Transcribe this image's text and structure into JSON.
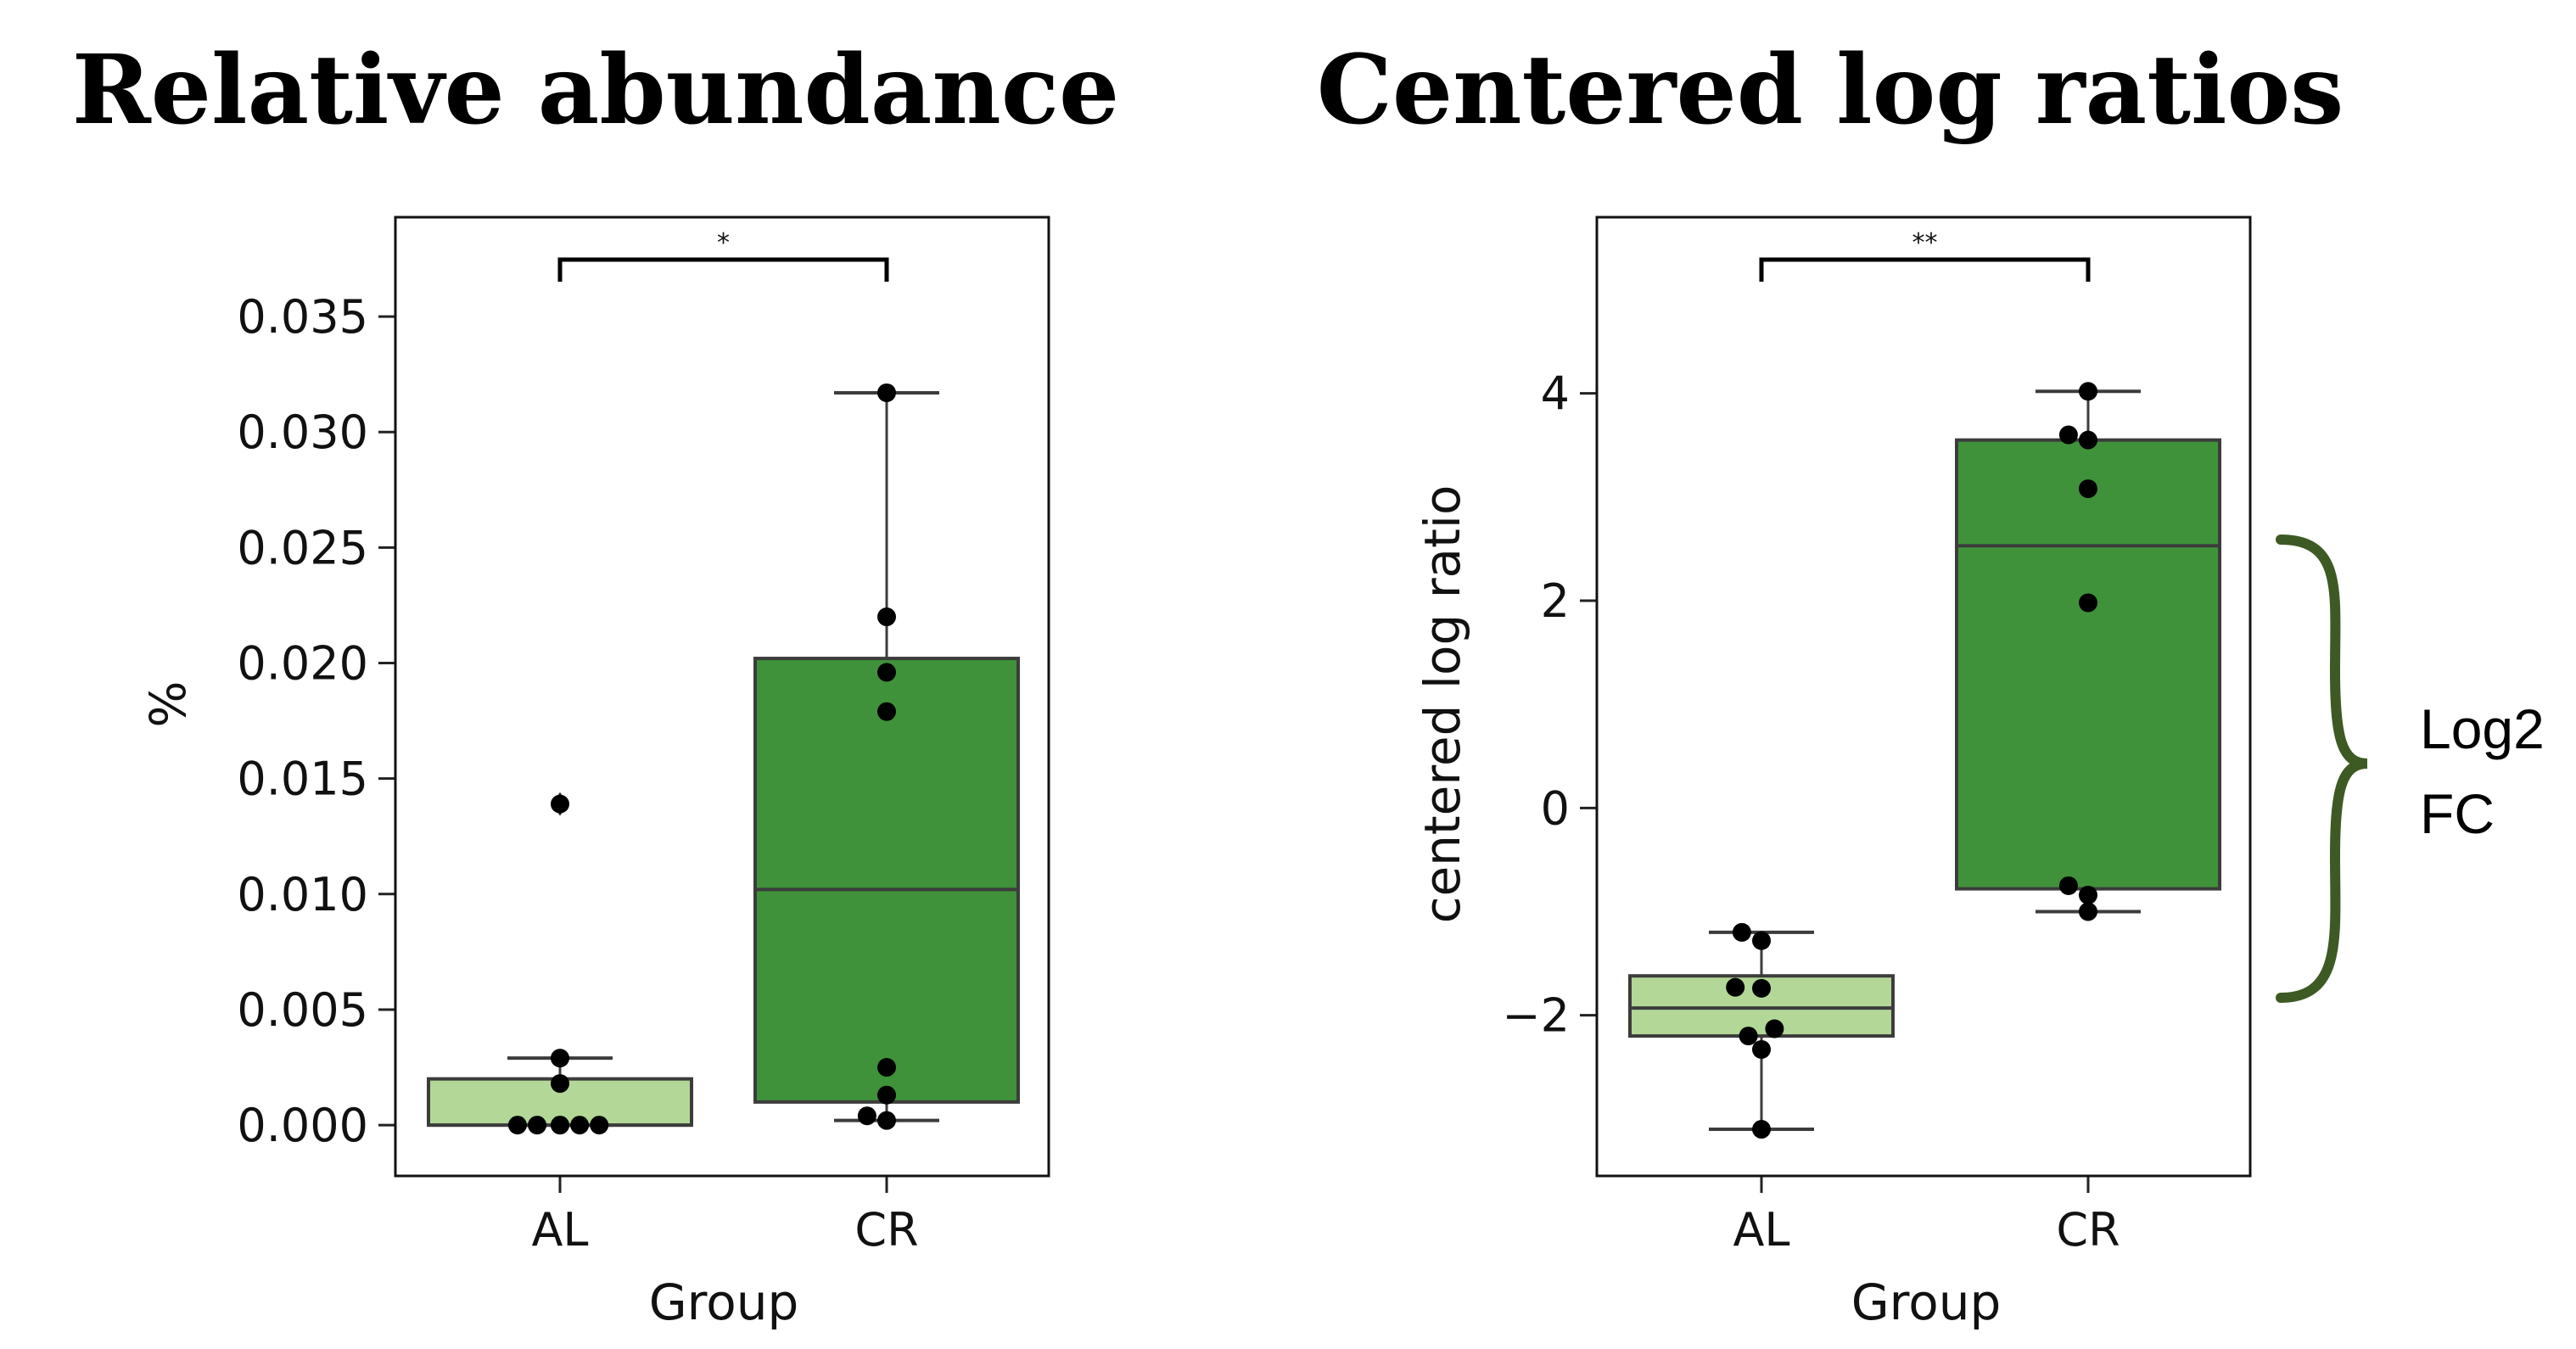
{
  "chart_data": [
    {
      "type": "box",
      "title": "Relative abundance",
      "xlabel": "Group",
      "ylabel": "%",
      "categories": [
        "AL",
        "CR"
      ],
      "ylim": [
        -0.0022,
        0.0393
      ],
      "yticks": [
        0.0,
        0.005,
        0.01,
        0.015,
        0.02,
        0.025,
        0.03,
        0.035
      ],
      "ytick_labels": [
        "0.000",
        "0.005",
        "0.010",
        "0.015",
        "0.020",
        "0.025",
        "0.030",
        "0.035"
      ],
      "boxes": [
        {
          "category": "AL",
          "q1": 0.0,
          "median": 0.0,
          "q3": 0.002,
          "whisker_low": 0.0,
          "whisker_high": 0.0029,
          "fliers": [
            0.0139
          ],
          "color": "#b3d796"
        },
        {
          "category": "CR",
          "q1": 0.001,
          "median": 0.0102,
          "q3": 0.0202,
          "whisker_low": 0.0002,
          "whisker_high": 0.0317,
          "fliers": [],
          "color": "#3f923a"
        }
      ],
      "points": [
        {
          "category": "AL",
          "values": [
            0.0,
            0.0,
            0.0,
            0.0,
            0.0,
            0.0,
            0.0018,
            0.0029,
            0.0139
          ],
          "offsets": [
            -0.13,
            -0.07,
            0.0,
            0.06,
            0.12,
            0.0,
            0.0,
            0.0,
            0.0
          ]
        },
        {
          "category": "CR",
          "values": [
            0.0317,
            0.022,
            0.0196,
            0.0179,
            0.0025,
            0.0013,
            0.0004,
            0.0002
          ],
          "offsets": [
            0.0,
            0.0,
            0.0,
            0.0,
            0.0,
            0.0,
            -0.06,
            0.0
          ]
        }
      ],
      "significance": {
        "label": "*",
        "from": "AL",
        "to": "CR"
      }
    },
    {
      "type": "box",
      "title": "Centered log ratios",
      "xlabel": "Group",
      "ylabel": "centered log ratio",
      "categories": [
        "AL",
        "CR"
      ],
      "ylim": [
        -3.55,
        5.7
      ],
      "yticks": [
        -2,
        0,
        2,
        4
      ],
      "ytick_labels": [
        "−2",
        "0",
        "2",
        "4"
      ],
      "boxes": [
        {
          "category": "AL",
          "q1": -2.2,
          "median": -1.93,
          "q3": -1.62,
          "whisker_low": -3.1,
          "whisker_high": -1.2,
          "fliers": [],
          "color": "#b3d796"
        },
        {
          "category": "CR",
          "q1": -0.78,
          "median": 2.53,
          "q3": 3.55,
          "whisker_low": -1.0,
          "whisker_high": 4.02,
          "fliers": [],
          "color": "#3f923a"
        }
      ],
      "points": [
        {
          "category": "AL",
          "values": [
            -1.2,
            -1.28,
            -1.73,
            -1.74,
            -2.13,
            -2.2,
            -2.33,
            -3.1
          ],
          "offsets": [
            -0.06,
            0.0,
            -0.08,
            0.0,
            0.04,
            -0.04,
            0.0,
            0.0
          ]
        },
        {
          "category": "CR",
          "values": [
            4.02,
            3.6,
            3.55,
            3.08,
            1.98,
            -0.75,
            -0.84,
            -1.0
          ],
          "offsets": [
            0.0,
            -0.06,
            0.0,
            0.0,
            0.0,
            -0.06,
            0.0,
            0.0
          ]
        }
      ],
      "significance": {
        "label": "**",
        "from": "AL",
        "to": "CR"
      }
    }
  ],
  "annotation": {
    "line1": "Log2",
    "line2": "FC",
    "color": "#3d5a24"
  }
}
